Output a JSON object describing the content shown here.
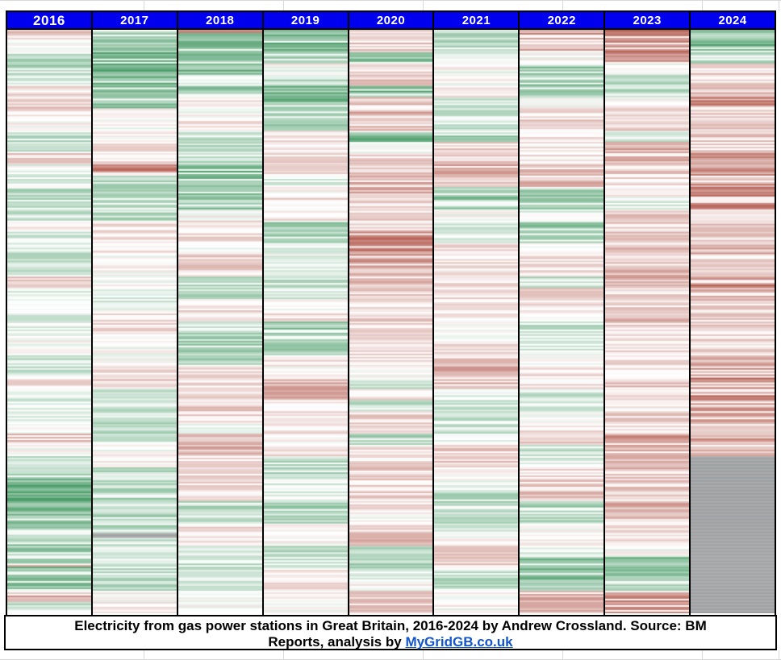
{
  "caption": {
    "line1": "Electricity from gas power stations in Great Britain, 2016-2024 by Andrew Crossland. Source: BM",
    "line2_prefix": "Reports, analysis by ",
    "link_text": "MyGridGB.co.uk"
  },
  "colors": {
    "header_bg": "#0000EE",
    "header_text": "#FFFFFF",
    "link": "#1155CC",
    "border": "#000000",
    "gridline": "#D9D9D9",
    "low_green": "#4C9E6A",
    "high_red": "#B45C50",
    "nodata_gray": "#ABABAB",
    "nodata_gray_dark": "#9DA0A3"
  },
  "chart_data": {
    "type": "heatmap",
    "title": "Electricity from gas power stations in Great Britain, 2016-2024 by Andrew Crossland. Source: BM Reports, analysis by MyGridGB.co.uk",
    "columns": [
      "2016",
      "2017",
      "2018",
      "2019",
      "2020",
      "2021",
      "2022",
      "2023",
      "2024"
    ],
    "rows": "days of the year, January (top) to December (bottom), one thin stripe per day",
    "legend": "relative gas generation: negative = low gas output (green), 0 = average (white), positive = high gas output (red), null = no data (gray)",
    "value_range": [
      -3,
      3
    ],
    "grid": "off",
    "series": [
      {
        "name": "2016",
        "weekly_values": [
          0.8,
          0,
          -1,
          -1.5,
          -0.5,
          0.5,
          0.8,
          0.5,
          0,
          -1,
          -0.8,
          0.8,
          -0.3,
          -0.5,
          -1,
          -1,
          -1,
          0.5,
          -0.8,
          -0.8,
          -0.8,
          -0.8,
          0.8,
          -0.5,
          -0.5,
          -0.5,
          -0.5,
          0,
          0,
          -0.8,
          -0.8,
          0.5,
          -0.5,
          -0.5,
          -0.5,
          0,
          1,
          0,
          -1,
          -1.2,
          -2,
          -2,
          -2,
          -1.5,
          -1.5,
          -1.5,
          -1.5,
          -1.8,
          -2,
          -2,
          1.5,
          -1
        ],
        "day_overrides": {
          "334": 1.8
        }
      },
      {
        "name": "2017",
        "weekly_values": [
          -1.5,
          -1.5,
          -2.2,
          -2.2,
          -1.8,
          -1.5,
          -1.5,
          0,
          0,
          0,
          0.5,
          0.5,
          2.5,
          -1,
          -1,
          -1,
          -1,
          0.5,
          0.5,
          0.5,
          0,
          0,
          0,
          -0.5,
          -0.5,
          0.5,
          0.5,
          0,
          0,
          0,
          0.5,
          0.8,
          -0.8,
          -0.8,
          -0.8,
          -1,
          -1,
          0,
          0,
          -1,
          -1,
          -1.2,
          -1.2,
          -1.2,
          -1.2,
          -0.8,
          -0.8,
          -0.8,
          -1,
          -1,
          0,
          0.5
        ],
        "day_overrides": {
          "314": null,
          "315": null,
          "316": null
        }
      },
      {
        "name": "2018",
        "weekly_values": [
          -2,
          -2,
          -2,
          -1.8,
          -0.5,
          -1.5,
          0.5,
          0,
          0.8,
          -1,
          -1,
          -1,
          -2,
          -2,
          -2,
          -1.5,
          0,
          0.5,
          0.5,
          0,
          0.8,
          0.8,
          -1,
          -1,
          0.5,
          0.5,
          -0.5,
          -1.2,
          -1.2,
          -1.2,
          0.5,
          0.5,
          0.8,
          0.8,
          0.8,
          0,
          1.2,
          1.2,
          0.5,
          0.5,
          0.5,
          0.5,
          -1,
          -1,
          0.5,
          0.5,
          -0.5,
          -1,
          -1,
          -1,
          0,
          0
        ],
        "day_overrides": {
          "0": 2.6,
          "1": 2
        }
      },
      {
        "name": "2019",
        "weekly_values": [
          -2,
          -2,
          -1.8,
          0,
          -1,
          -1.8,
          -1.8,
          -1.5,
          -1.5,
          0.5,
          0.5,
          0.5,
          0.5,
          -0.5,
          0,
          0.5,
          0.5,
          -1.5,
          -1.5,
          -0.3,
          -0.3,
          -0.3,
          -1,
          -1,
          0,
          0.5,
          -1.5,
          -1.5,
          -1.5,
          0.5,
          0,
          1.2,
          1.5,
          0.5,
          0.5,
          0.5,
          0,
          0.5,
          -1,
          -1,
          -0.5,
          -0.5,
          -1.2,
          -1.2,
          0,
          0,
          -1,
          -1,
          0.5,
          0.5,
          0,
          0
        ],
        "day_overrides": {}
      },
      {
        "name": "2020",
        "weekly_values": [
          1,
          1,
          -1.5,
          1,
          1,
          -2,
          1,
          1.2,
          1,
          -2.2,
          0,
          0.8,
          0.8,
          1.2,
          1.2,
          0.8,
          0.8,
          0.8,
          2,
          2,
          1.8,
          1.2,
          1.2,
          0.8,
          0.5,
          0.8,
          0.5,
          0.5,
          0.5,
          0.5,
          0,
          -1,
          0.5,
          -1.2,
          0.8,
          0.8,
          -1.2,
          0.5,
          0.5,
          0.8,
          0.8,
          0.8,
          0.5,
          0,
          1.2,
          1.2,
          -1.2,
          -1.2,
          -0.5,
          0,
          0.8,
          0.8
        ],
        "day_overrides": {}
      },
      {
        "name": "2021",
        "weekly_values": [
          -1,
          -1,
          -0.5,
          0,
          0,
          0.5,
          -0.8,
          -0.8,
          -0.8,
          -1.5,
          0.8,
          0.8,
          1.5,
          0.8,
          -1.5,
          -1.5,
          0,
          -0.5,
          -0.5,
          0.5,
          0.5,
          0.5,
          0.5,
          0.5,
          0.3,
          0.3,
          0,
          0,
          0.5,
          0.8,
          1.2,
          1.2,
          -0.5,
          -0.8,
          -0.8,
          -0.8,
          -0.5,
          0.8,
          0.8,
          0,
          0,
          -1,
          -1,
          -1,
          -0.5,
          0,
          0.8,
          0.8,
          -1,
          -1,
          0,
          0
        ],
        "day_overrides": {}
      },
      {
        "name": "2022",
        "weekly_values": [
          1.5,
          1.2,
          0,
          -1.5,
          -1.5,
          -1.2,
          0,
          0.5,
          1,
          0.5,
          0.3,
          0.5,
          1.2,
          1.2,
          -1.5,
          -1.5,
          -0.5,
          -1.8,
          -1,
          0,
          0.8,
          0.5,
          -1,
          0.8,
          0.5,
          0,
          -0.8,
          -0.8,
          -0.5,
          0,
          0.5,
          0.5,
          -0.8,
          -0.5,
          0,
          0.5,
          0.8,
          -1,
          -0.5,
          0.5,
          0.8,
          1,
          -1.2,
          -1.2,
          0,
          0,
          -0.5,
          -2.2,
          -2.2,
          -1,
          1.5,
          1.5
        ],
        "day_overrides": {}
      },
      {
        "name": "2023",
        "weekly_values": [
          2.2,
          2.2,
          2,
          0,
          -1,
          -1,
          0,
          0.5,
          0.8,
          -1,
          1.5,
          1.5,
          0.8,
          0.5,
          0,
          -0.5,
          0.8,
          0.8,
          0.8,
          1.2,
          0.8,
          1.2,
          1.2,
          0.8,
          0.8,
          1.2,
          1.2,
          0.8,
          0.5,
          0.8,
          0.5,
          1,
          0.8,
          0.5,
          0.8,
          0.5,
          1.5,
          1.5,
          1,
          1,
          0.8,
          1,
          1.2,
          1,
          0.5,
          0.5,
          0,
          -1.8,
          -1.8,
          -1,
          2,
          2
        ],
        "day_overrides": {}
      },
      {
        "name": "2024",
        "weekly_values": [
          -1.5,
          -2.2,
          -1.2,
          0.8,
          1,
          1,
          1.8,
          0.8,
          1,
          1,
          0.8,
          1.5,
          1.5,
          1.5,
          2.2,
          2.2,
          0.8,
          0.8,
          0.8,
          1.2,
          0.8,
          1.2,
          2,
          1.5,
          1.2,
          1.2,
          1.2,
          0.8,
          0.8,
          1.2,
          1.5,
          2.2,
          2.2,
          2,
          1.8,
          1.2,
          1.5,
          1,
          null,
          null,
          null,
          null,
          null,
          null,
          null,
          null,
          null,
          null,
          null,
          null,
          null,
          null
        ],
        "day_overrides": {}
      }
    ]
  }
}
